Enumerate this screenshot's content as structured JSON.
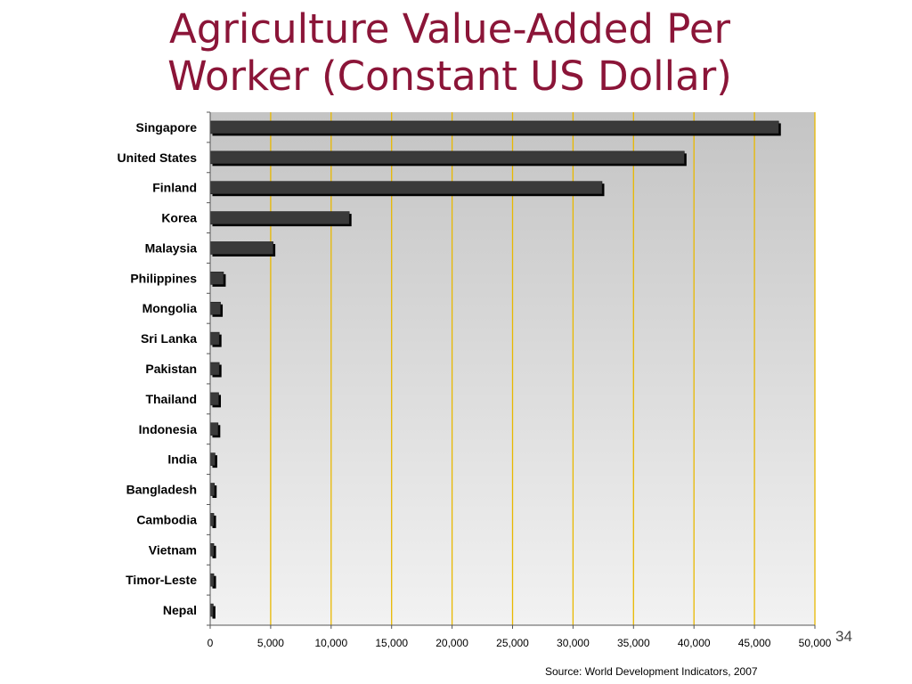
{
  "slide": {
    "title_line1": "Agriculture Value-Added Per",
    "title_line2": "Worker (Constant US Dollar)",
    "source": "Source: World Development Indicators, 2007",
    "slide_number": "34"
  },
  "colors": {
    "title": "#8b1538",
    "gridline": "#e8b800",
    "bar": "#3a3a3a",
    "bar_shadow": "#000000",
    "plot_top": "#c4c4c4",
    "plot_bottom": "#f2f2f2"
  },
  "chart_data": {
    "type": "bar",
    "orientation": "horizontal",
    "categories": [
      "Singapore",
      "United States",
      "Finland",
      "Korea",
      "Malaysia",
      "Philippines",
      "Mongolia",
      "Sri Lanka",
      "Pakistan",
      "Thailand",
      "Indonesia",
      "India",
      "Bangladesh",
      "Cambodia",
      "Vietnam",
      "Timor-Leste",
      "Nepal"
    ],
    "values": [
      47000,
      39200,
      32400,
      11500,
      5200,
      1100,
      850,
      750,
      750,
      700,
      650,
      400,
      350,
      300,
      300,
      300,
      250
    ],
    "xlim": [
      0,
      50000
    ],
    "xticks": [
      0,
      5000,
      10000,
      15000,
      20000,
      25000,
      30000,
      35000,
      40000,
      45000,
      50000
    ],
    "xtick_labels": [
      "0",
      "5,000",
      "10,000",
      "15,000",
      "20,000",
      "25,000",
      "30,000",
      "35,000",
      "40,000",
      "45,000",
      "50,000"
    ],
    "grid": "vertical",
    "legend": "none"
  }
}
